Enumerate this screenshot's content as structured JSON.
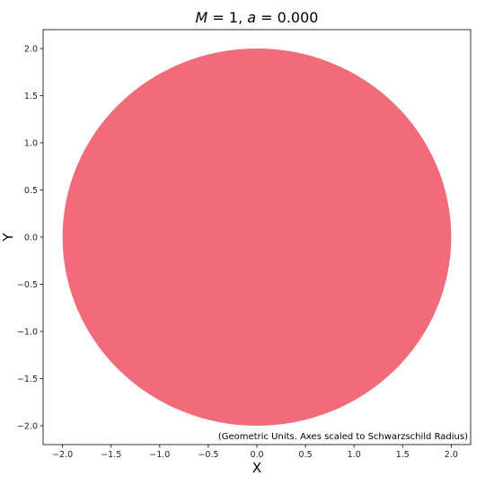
{
  "chart_data": {
    "type": "scatter",
    "title": "M = 1, a = 0.000",
    "title_parts": {
      "m_symbol": "M",
      "m_value": "1",
      "a_symbol": "a",
      "a_value": "0.000"
    },
    "xlabel": "X",
    "ylabel": "Y",
    "xlim": [
      -2.2,
      2.2
    ],
    "ylim": [
      -2.2,
      2.2
    ],
    "xticks": [
      -2.0,
      -1.5,
      -1.0,
      -0.5,
      0.0,
      0.5,
      1.0,
      1.5,
      2.0
    ],
    "yticks": [
      -2.0,
      -1.5,
      -1.0,
      -0.5,
      0.0,
      0.5,
      1.0,
      1.5,
      2.0
    ],
    "grid": false,
    "series": [
      {
        "shape": "disk",
        "center": [
          0,
          0
        ],
        "radius": 2.0,
        "color": "#f26b7a"
      }
    ],
    "annotation": "(Geometric Units. Axes scaled to Schwarzschild Radius)",
    "annotation_placement": "bottom-right"
  }
}
